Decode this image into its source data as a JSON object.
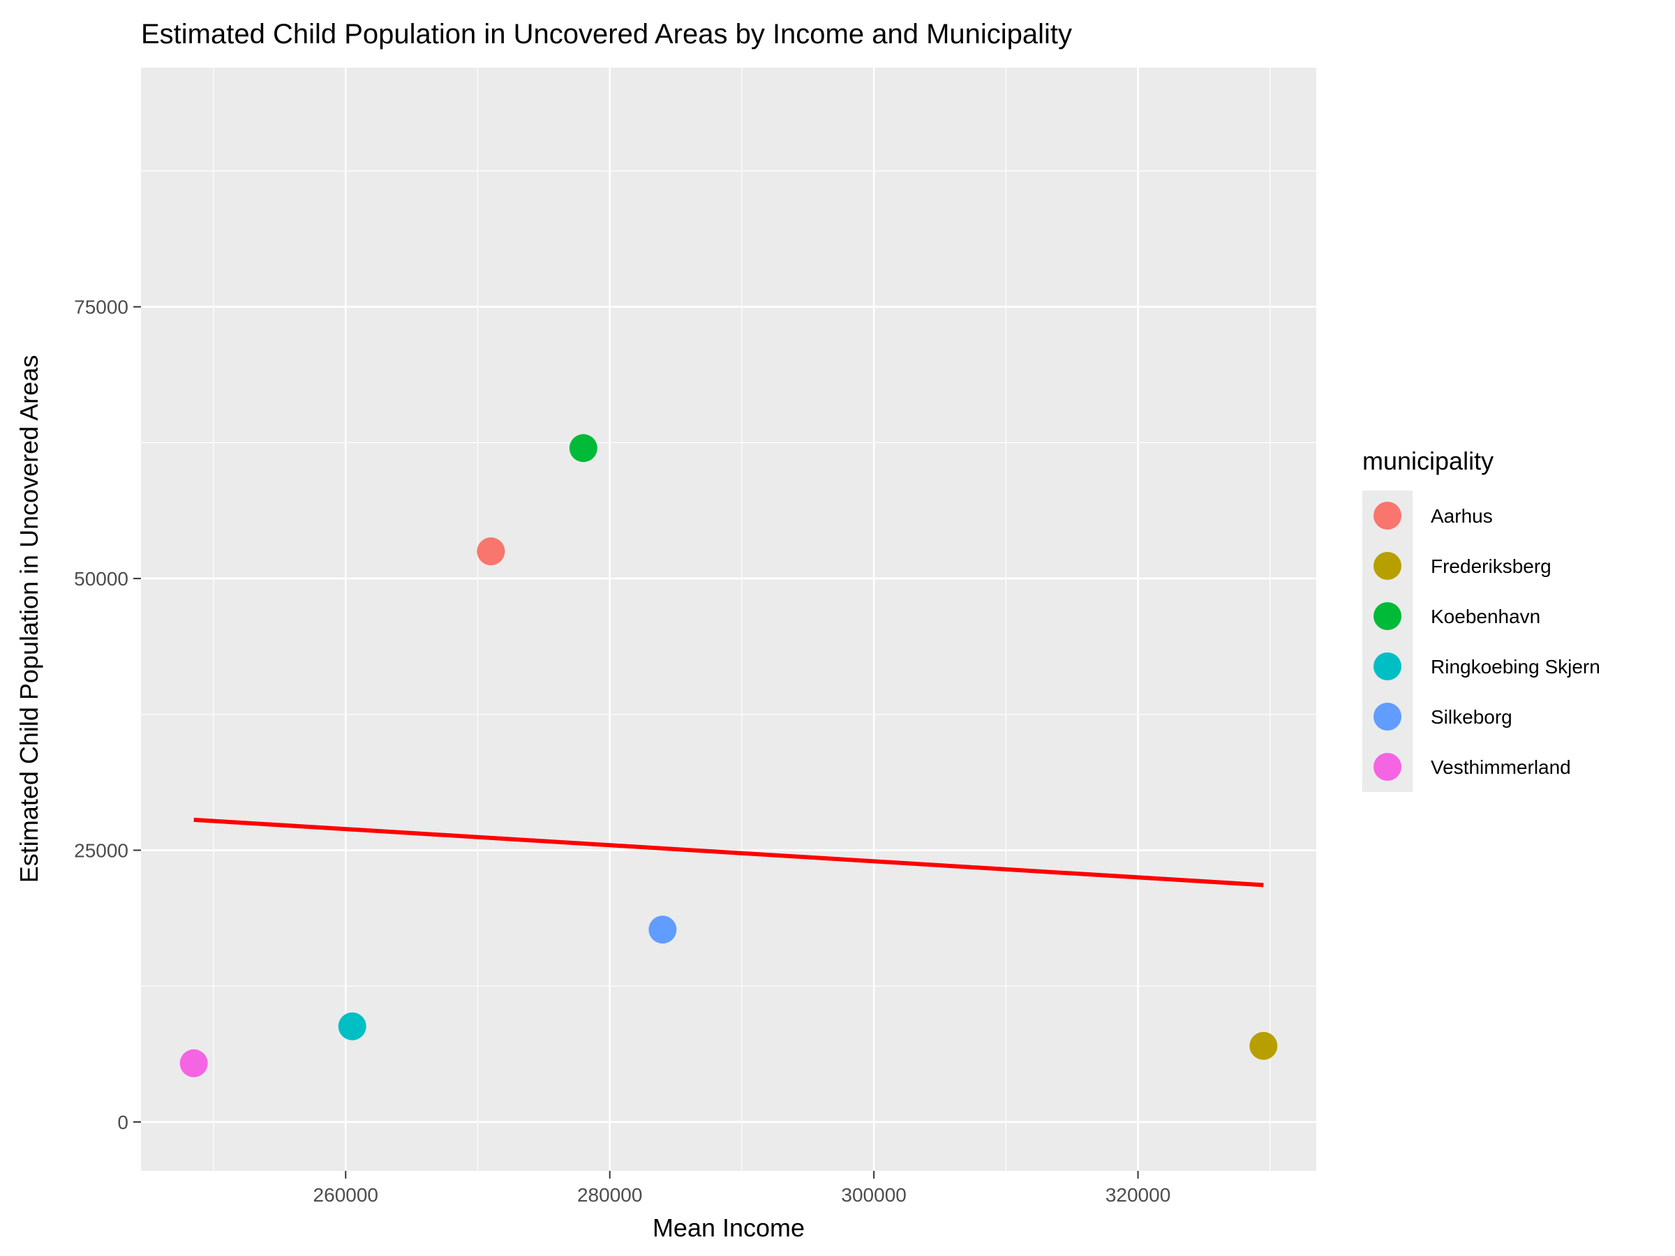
{
  "chart_data": {
    "type": "scatter",
    "title": "Estimated Child Population in Uncovered Areas by Income and Municipality",
    "xlabel": "Mean Income",
    "ylabel": "Estimated Child Population in Uncovered Areas",
    "xlim": [
      244500,
      333500
    ],
    "ylim": [
      -4500,
      97000
    ],
    "x_ticks": [
      260000,
      280000,
      300000,
      320000
    ],
    "x_tick_labels": [
      "260000",
      "280000",
      "300000",
      "320000"
    ],
    "y_ticks": [
      0,
      25000,
      50000,
      75000
    ],
    "y_tick_labels": [
      "0",
      "25000",
      "50000",
      "75000"
    ],
    "grid": true,
    "legend": {
      "title": "municipality",
      "position": "right"
    },
    "series": [
      {
        "name": "Aarhus",
        "color": "#F8766D",
        "x": [
          271000
        ],
        "y": [
          52500
        ]
      },
      {
        "name": "Frederiksberg",
        "color": "#B79F00",
        "x": [
          329500
        ],
        "y": [
          7000
        ]
      },
      {
        "name": "Koebenhavn",
        "color": "#00BA38",
        "x": [
          278000
        ],
        "y": [
          62000
        ]
      },
      {
        "name": "Ringkoebing Skjern",
        "color": "#00BFC4",
        "x": [
          260500
        ],
        "y": [
          8800
        ]
      },
      {
        "name": "Silkeborg",
        "color": "#619CFF",
        "x": [
          284000
        ],
        "y": [
          17700
        ]
      },
      {
        "name": "Vesthimmerland",
        "color": "#F564E3",
        "x": [
          248500
        ],
        "y": [
          5400
        ]
      }
    ],
    "trend_line": {
      "color": "#FF0000",
      "x": [
        248500,
        329500
      ],
      "y": [
        27800,
        21800
      ]
    }
  }
}
